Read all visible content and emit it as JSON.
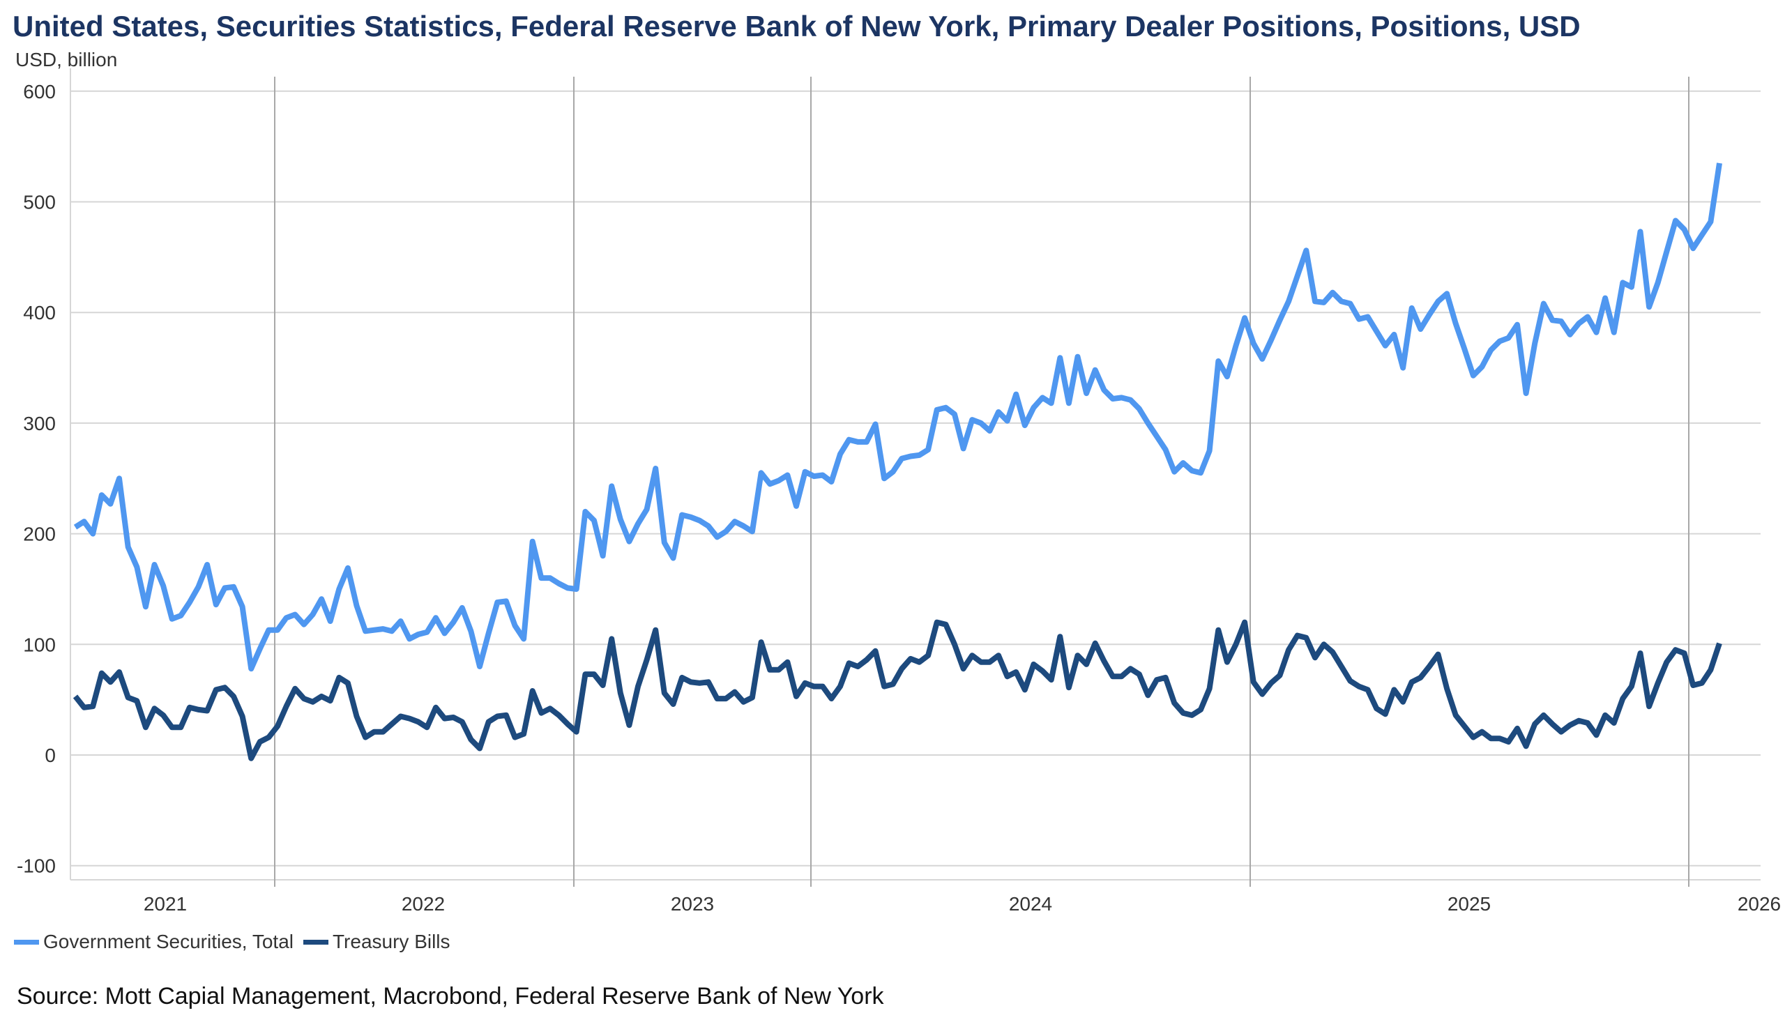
{
  "title": "United States, Securities Statistics, Federal Reserve Bank of New York, Primary Dealer Positions, Positions, USD",
  "source": "Source: Mott Capial Management, Macrobond, Federal Reserve Bank of New York",
  "chart_data": {
    "type": "line",
    "title": "United States, Securities Statistics, Federal Reserve Bank of New York, Primary Dealer Positions, Positions, USD",
    "ylabel": "USD, billion",
    "ylim": [
      -100,
      600
    ],
    "yticks": [
      "600",
      "500",
      "400",
      "300",
      "200",
      "100",
      "0",
      "-100"
    ],
    "xticks": [
      "2021",
      "2022",
      "2023",
      "2024",
      "2025",
      "2026"
    ],
    "grid": true,
    "legend": "bottom-left",
    "series": [
      {
        "name": "Government Securities, Total",
        "color": "#4f97f0",
        "values": [
          206,
          211,
          200,
          235,
          227,
          250,
          188,
          170,
          134,
          172,
          153,
          123,
          126,
          138,
          152,
          172,
          136,
          151,
          152,
          134,
          78,
          96,
          113,
          113,
          124,
          127,
          118,
          127,
          141,
          121,
          150,
          169,
          135,
          112,
          113,
          114,
          112,
          121,
          105,
          109,
          111,
          124,
          110,
          120,
          133,
          112,
          80,
          110,
          138,
          139,
          117,
          105,
          193,
          160,
          160,
          155,
          151,
          150,
          220,
          212,
          180,
          243,
          213,
          193,
          209,
          222,
          259,
          192,
          178,
          217,
          215,
          212,
          207,
          197,
          202,
          211,
          207,
          202,
          255,
          245,
          248,
          253,
          225,
          256,
          252,
          253,
          247,
          272,
          285,
          283,
          283,
          299,
          250,
          256,
          268,
          270,
          271,
          276,
          312,
          314,
          308,
          277,
          303,
          300,
          293,
          310,
          302,
          326,
          298,
          314,
          323,
          318,
          359,
          318,
          360,
          327,
          348,
          330,
          322,
          323,
          321,
          313,
          300,
          288,
          276,
          256,
          264,
          257,
          255,
          275,
          356,
          342,
          370,
          395,
          372,
          358,
          375,
          393,
          410,
          433,
          456,
          410,
          409,
          418,
          410,
          408,
          394,
          396,
          383,
          370,
          380,
          350,
          404,
          385,
          398,
          410,
          417,
          390,
          367,
          343,
          351,
          366,
          374,
          377,
          389,
          327,
          372,
          408,
          393,
          392,
          380,
          390,
          396,
          382,
          413,
          382,
          427,
          423,
          473,
          405,
          427,
          455,
          483,
          475,
          458,
          470,
          482,
          535
        ]
      },
      {
        "name": "Treasury Bills",
        "color": "#1d4a7e",
        "values": [
          53,
          43,
          44,
          74,
          66,
          75,
          52,
          49,
          25,
          42,
          36,
          25,
          25,
          43,
          41,
          40,
          59,
          61,
          53,
          35,
          -3,
          12,
          16,
          26,
          44,
          60,
          51,
          48,
          53,
          49,
          70,
          65,
          35,
          16,
          21,
          21,
          28,
          35,
          33,
          30,
          25,
          43,
          33,
          34,
          30,
          14,
          6,
          30,
          35,
          36,
          16,
          19,
          58,
          38,
          42,
          36,
          28,
          21,
          73,
          73,
          63,
          105,
          56,
          27,
          62,
          86,
          113,
          56,
          46,
          70,
          66,
          65,
          66,
          51,
          51,
          57,
          48,
          52,
          102,
          77,
          77,
          84,
          53,
          65,
          62,
          62,
          51,
          62,
          83,
          80,
          86,
          94,
          62,
          64,
          78,
          87,
          84,
          90,
          120,
          118,
          100,
          78,
          90,
          84,
          84,
          90,
          71,
          75,
          59,
          82,
          76,
          68,
          107,
          61,
          90,
          82,
          101,
          85,
          71,
          71,
          78,
          73,
          54,
          68,
          70,
          47,
          38,
          36,
          41,
          60,
          113,
          84,
          100,
          120,
          66,
          55,
          65,
          72,
          95,
          108,
          106,
          88,
          100,
          93,
          80,
          67,
          62,
          59,
          42,
          37,
          59,
          48,
          66,
          70,
          80,
          91,
          60,
          36,
          26,
          16,
          21,
          15,
          15,
          12,
          24,
          8,
          28,
          36,
          28,
          21,
          27,
          31,
          29,
          18,
          36,
          29,
          51,
          62,
          92,
          44,
          65,
          84,
          95,
          92,
          63,
          65,
          77,
          101
        ]
      }
    ]
  }
}
